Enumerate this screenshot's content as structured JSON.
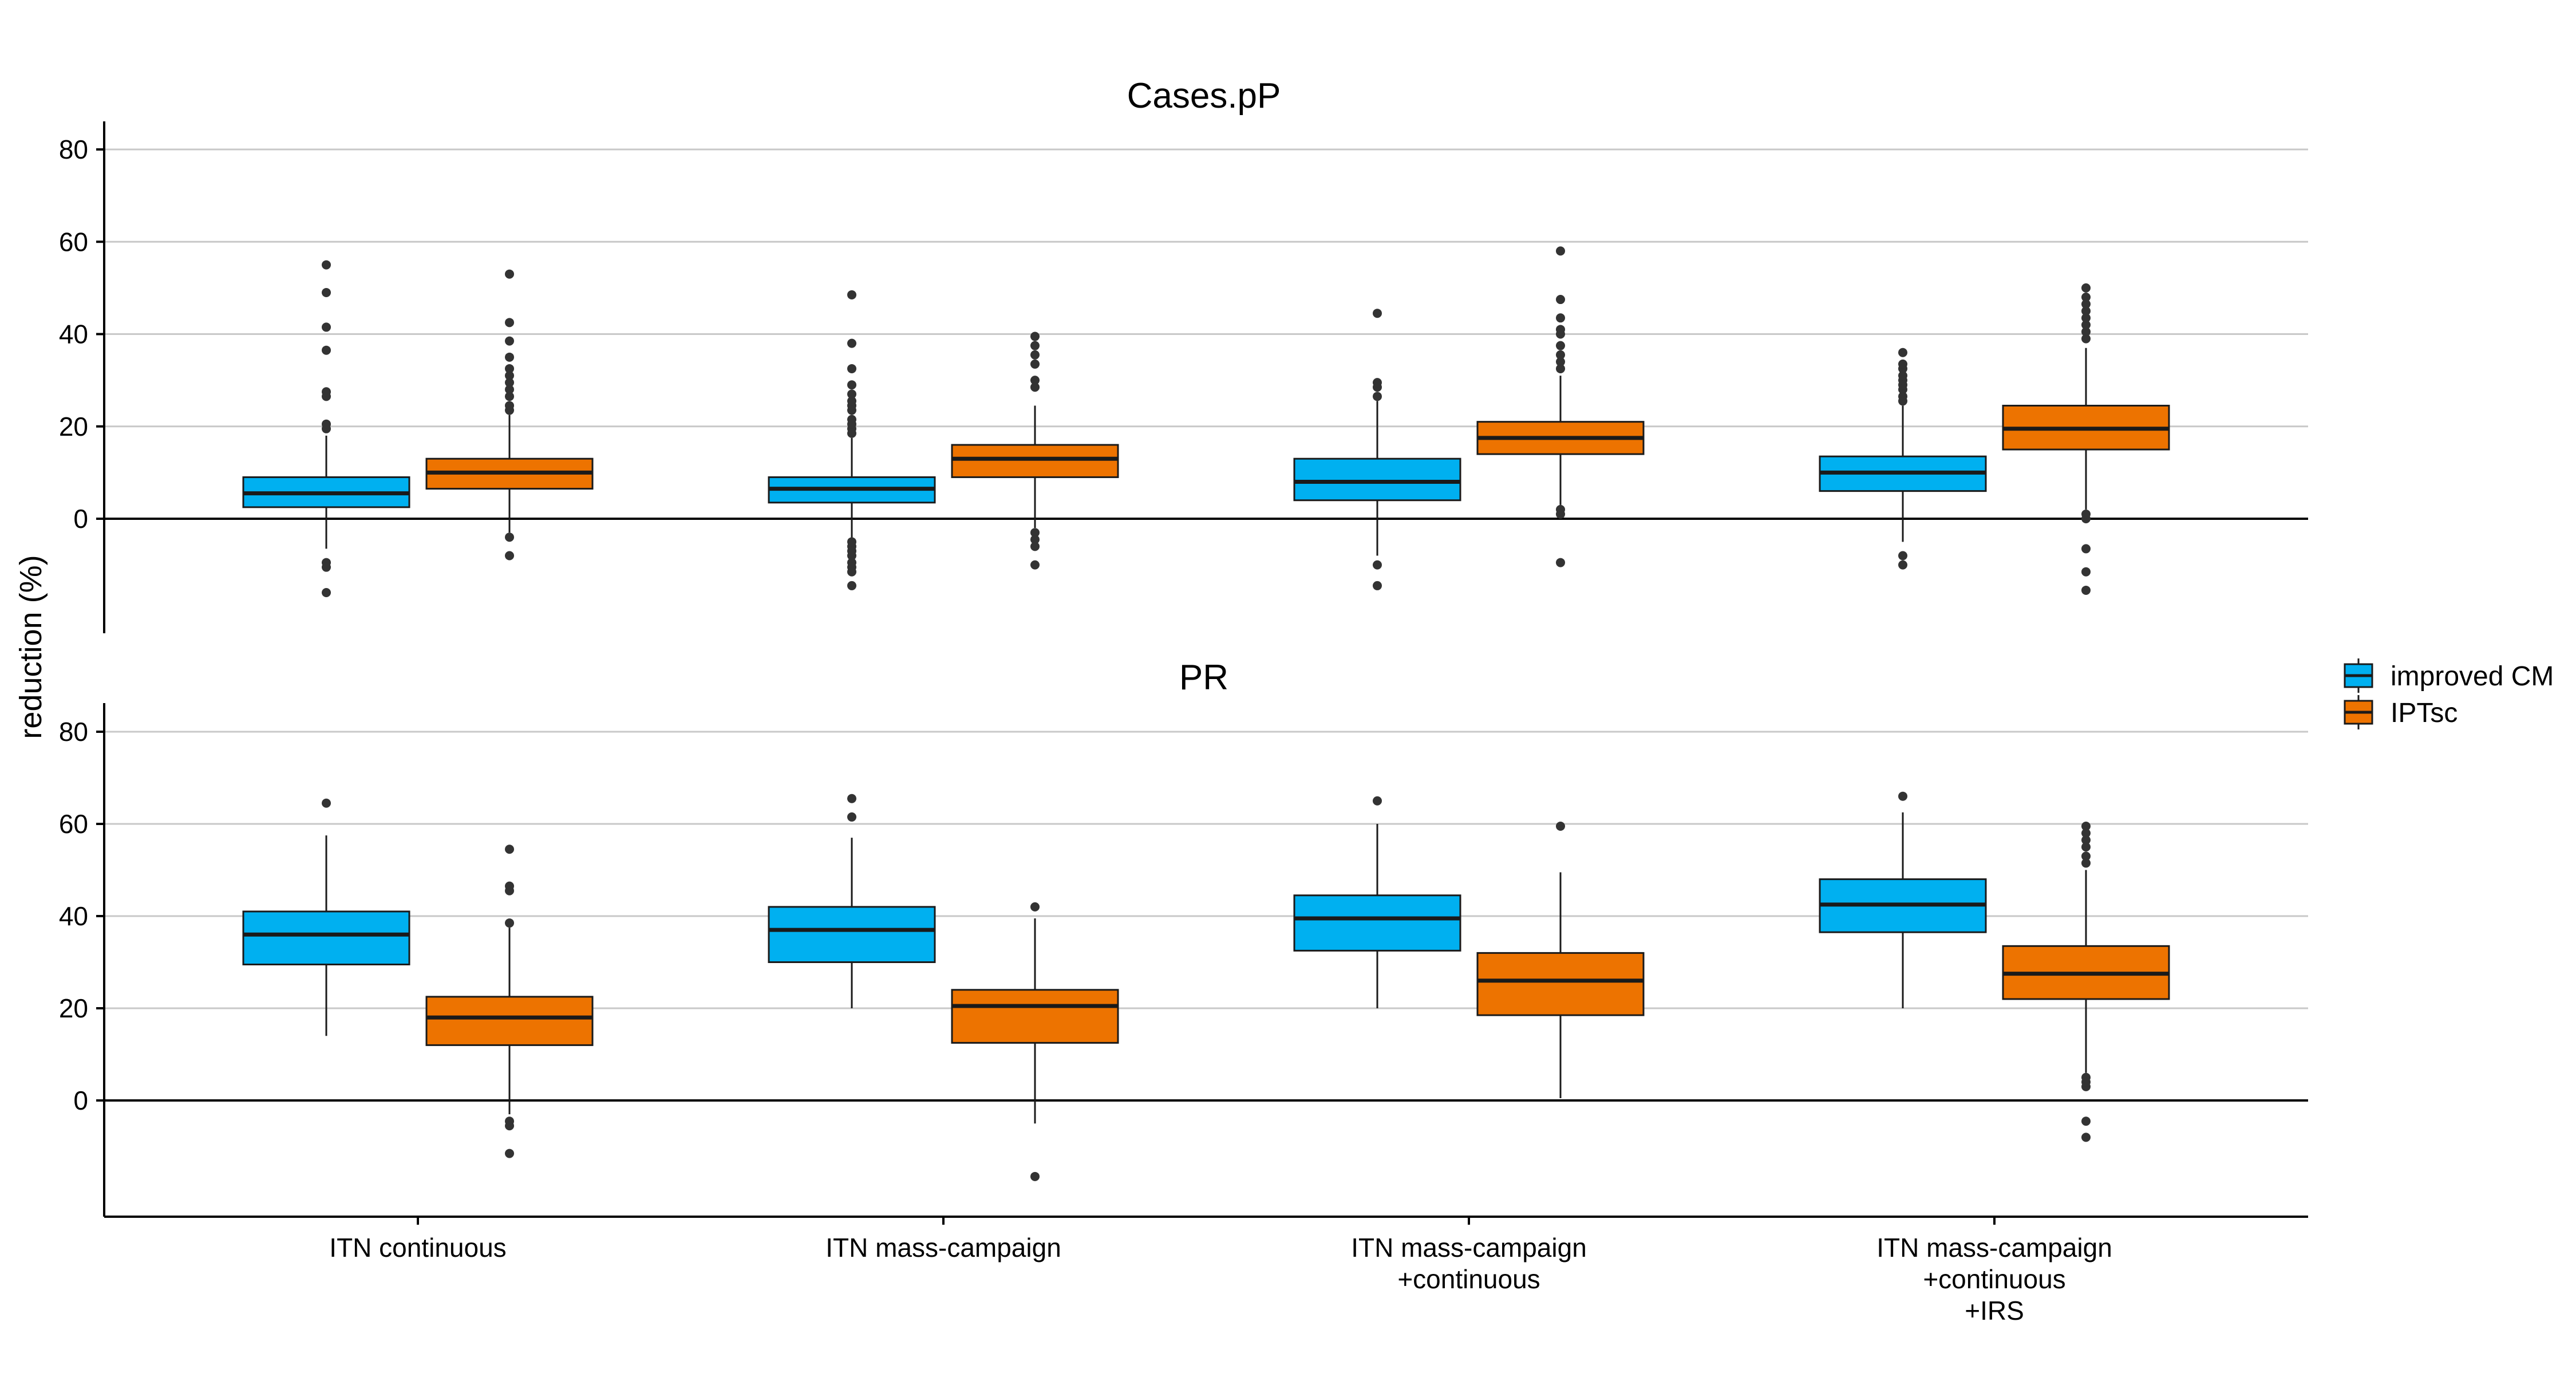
{
  "chart_data": {
    "type": "boxplot",
    "ylabel": "reduction (%)",
    "xlabel": "",
    "categories": [
      [
        "ITN continuous"
      ],
      [
        "ITN mass-campaign"
      ],
      [
        "ITN mass-campaign",
        "+continuous"
      ],
      [
        "ITN mass-campaign",
        "+continuous",
        "+IRS"
      ]
    ],
    "y_ticks": [
      0,
      20,
      40,
      60,
      80
    ],
    "ylim": [
      -25,
      87
    ],
    "grid": "horizontal",
    "legend": {
      "position": "right",
      "items": [
        {
          "name": "improved CM",
          "color": "#00B0F0"
        },
        {
          "name": "IPTsc",
          "color": "#ED7300"
        }
      ]
    },
    "panels": [
      {
        "title": "Cases.pP",
        "series": [
          {
            "name": "improved CM",
            "boxes": [
              {
                "q1": 2.5,
                "median": 5.5,
                "q3": 9,
                "whisker_low": -6.5,
                "whisker_high": 18,
                "outliers": [
                  -9.5,
                  -10.5,
                  -16,
                  19.5,
                  20.5,
                  26.5,
                  27.5,
                  36.5,
                  41.5,
                  49,
                  55
                ]
              },
              {
                "q1": 3.5,
                "median": 6.5,
                "q3": 9,
                "whisker_low": -4.5,
                "whisker_high": 17.5,
                "outliers": [
                  -5,
                  -6,
                  -7,
                  -8,
                  -9.5,
                  -10.5,
                  -11.5,
                  -14.5,
                  18.5,
                  19.5,
                  20.5,
                  21.5,
                  23.5,
                  24.5,
                  25.5,
                  27,
                  29,
                  32.5,
                  38,
                  48.5
                ]
              },
              {
                "q1": 4,
                "median": 8,
                "q3": 13,
                "whisker_low": -8,
                "whisker_high": 25.5,
                "outliers": [
                  -10,
                  -14.5,
                  26.5,
                  28.5,
                  29.5,
                  44.5
                ]
              },
              {
                "q1": 6,
                "median": 10,
                "q3": 13.5,
                "whisker_low": -5,
                "whisker_high": 24.5,
                "outliers": [
                  -8,
                  -10,
                  25.5,
                  26.5,
                  28,
                  29,
                  30,
                  31,
                  32.5,
                  33.5,
                  36
                ]
              }
            ]
          },
          {
            "name": "IPTsc",
            "boxes": [
              {
                "q1": 6.5,
                "median": 10,
                "q3": 13,
                "whisker_low": -3,
                "whisker_high": 22.5,
                "outliers": [
                  -4,
                  -8,
                  23.5,
                  24.5,
                  26.5,
                  28,
                  29.5,
                  31,
                  32.5,
                  35,
                  38.5,
                  42.5,
                  53
                ]
              },
              {
                "q1": 9,
                "median": 13,
                "q3": 16,
                "whisker_low": -2,
                "whisker_high": 24.5,
                "outliers": [
                  -3,
                  -4.5,
                  -6,
                  -10,
                  28.5,
                  30,
                  33.5,
                  35.5,
                  37.5,
                  39.5
                ]
              },
              {
                "q1": 14,
                "median": 17.5,
                "q3": 21,
                "whisker_low": 3,
                "whisker_high": 31,
                "outliers": [
                  1,
                  2,
                  -9.5,
                  32.5,
                  34,
                  35.5,
                  37.5,
                  40,
                  41,
                  43.5,
                  47.5,
                  58
                ]
              },
              {
                "q1": 15,
                "median": 19.5,
                "q3": 24.5,
                "whisker_low": 2,
                "whisker_high": 37,
                "outliers": [
                  0,
                  1,
                  -6.5,
                  -11.5,
                  -15.5,
                  39,
                  40.5,
                  42,
                  43.5,
                  45,
                  46.5,
                  48,
                  50
                ]
              }
            ]
          }
        ]
      },
      {
        "title": "PR",
        "series": [
          {
            "name": "improved CM",
            "boxes": [
              {
                "q1": 29.5,
                "median": 36,
                "q3": 41,
                "whisker_low": 14,
                "whisker_high": 57.5,
                "outliers": [
                  64.5
                ]
              },
              {
                "q1": 30,
                "median": 37,
                "q3": 42,
                "whisker_low": 20,
                "whisker_high": 57,
                "outliers": [
                  61.5,
                  65.5
                ]
              },
              {
                "q1": 32.5,
                "median": 39.5,
                "q3": 44.5,
                "whisker_low": 20,
                "whisker_high": 60,
                "outliers": [
                  65
                ]
              },
              {
                "q1": 36.5,
                "median": 42.5,
                "q3": 48,
                "whisker_low": 20,
                "whisker_high": 62.5,
                "outliers": [
                  66
                ]
              }
            ]
          },
          {
            "name": "IPTsc",
            "boxes": [
              {
                "q1": 12,
                "median": 18,
                "q3": 22.5,
                "whisker_low": -3,
                "whisker_high": 37.5,
                "outliers": [
                  -4.5,
                  -5.5,
                  -11.5,
                  38.5,
                  45.5,
                  46.5,
                  54.5
                ]
              },
              {
                "q1": 12.5,
                "median": 20.5,
                "q3": 24,
                "whisker_low": -5,
                "whisker_high": 39.5,
                "outliers": [
                  -16.5,
                  42
                ]
              },
              {
                "q1": 18.5,
                "median": 26,
                "q3": 32,
                "whisker_low": 0.5,
                "whisker_high": 49.5,
                "outliers": [
                  59.5
                ]
              },
              {
                "q1": 22,
                "median": 27.5,
                "q3": 33.5,
                "whisker_low": 6,
                "whisker_high": 50,
                "outliers": [
                  3,
                  4,
                  5,
                  -4.5,
                  -8,
                  51.5,
                  53,
                  55,
                  56.5,
                  58,
                  59.5
                ]
              }
            ]
          }
        ]
      }
    ]
  }
}
